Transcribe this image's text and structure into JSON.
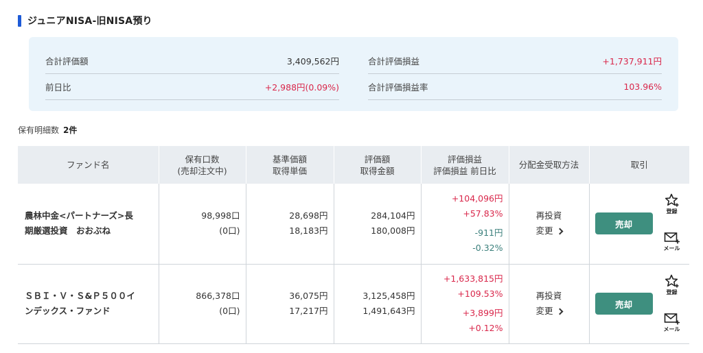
{
  "section": {
    "title": "ジュニアNISA-旧NISA預り",
    "accent_color": "#1e5bd7"
  },
  "summary": {
    "total_value_label": "合計評価額",
    "total_value": "3,409,562円",
    "prev_day_label": "前日比",
    "prev_day": "+2,988円(0.09%)",
    "total_pl_label": "合計評価損益",
    "total_pl": "+1,737,911円",
    "total_pl_rate_label": "合計評価損益率",
    "total_pl_rate": "103.96%"
  },
  "holdings_count": {
    "label": "保有明細数",
    "value": "2件"
  },
  "table": {
    "headers": {
      "fund": "ファンド名",
      "units_1": "保有口数",
      "units_2": "(売却注文中)",
      "price_1": "基準価額",
      "price_2": "取得単価",
      "amount_1": "評価額",
      "amount_2": "取得金額",
      "pl_1": "評価損益",
      "pl_2": "評価損益 前日比",
      "dist": "分配金受取方法",
      "trade": "取引"
    },
    "rows": [
      {
        "fund_line1": "農林中金<パートナーズ>長",
        "fund_line2": "期厳選投資　おおぶね",
        "units": "98,998口",
        "units_pending": "(0口)",
        "nav": "28,698円",
        "cost_price": "18,183円",
        "value": "284,104円",
        "cost_amount": "180,008円",
        "pl": "+104,096円",
        "pl_rate": "+57.83%",
        "day_change": "-911円",
        "day_change_rate": "-0.32%",
        "dist_method": "再投資",
        "dist_change": "変更",
        "sell": "売却",
        "register": "登録",
        "mail": "メール"
      },
      {
        "fund_line1": "ＳＢＩ・Ｖ・Ｓ&Ｐ５００イ",
        "fund_line2": "ンデックス・ファンド",
        "units": "866,378口",
        "units_pending": "(0口)",
        "nav": "36,075円",
        "cost_price": "17,217円",
        "value": "3,125,458円",
        "cost_amount": "1,491,643円",
        "pl": "+1,633,815円",
        "pl_rate": "+109.53%",
        "day_change": "+3,899円",
        "day_change_rate": "+0.12%",
        "dist_method": "再投資",
        "dist_change": "変更",
        "sell": "売却",
        "register": "登録",
        "mail": "メール"
      }
    ]
  },
  "colors": {
    "positive": "#d9264a",
    "negative": "#3a7f7b",
    "sell_button": "#3e8f7f",
    "summary_bg": "#eaf4fb"
  },
  "icons": {
    "register": "star-plus-icon",
    "mail": "mail-plus-icon"
  }
}
